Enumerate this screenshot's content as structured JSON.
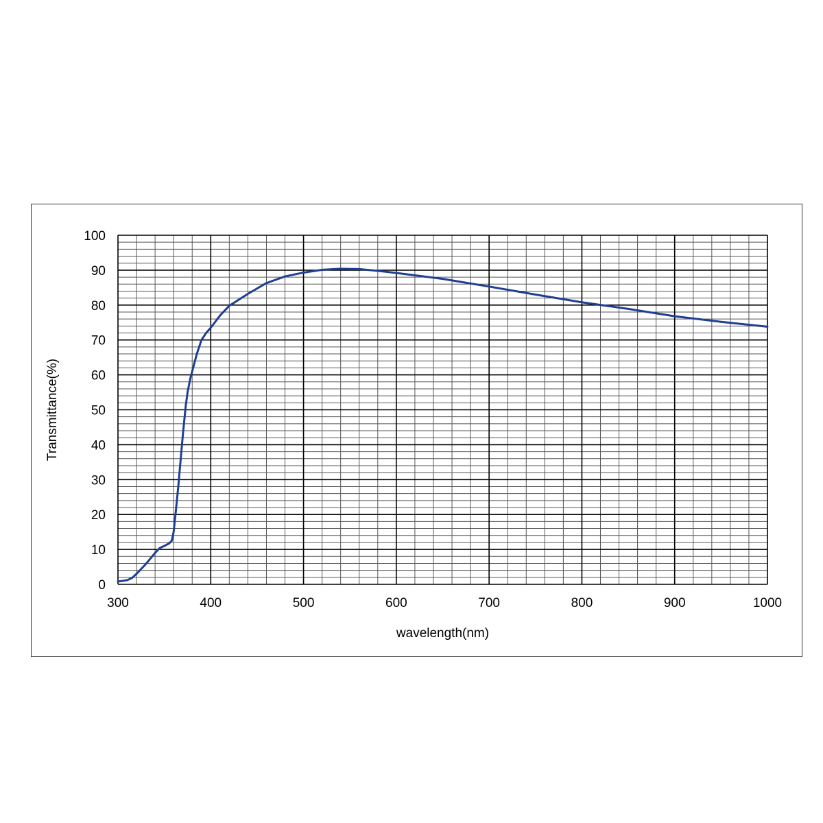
{
  "chart_data": {
    "type": "line",
    "title": "",
    "xlabel": "wavelength(nm)",
    "ylabel": "Transmittance(%)",
    "xlim": [
      300,
      1000
    ],
    "ylim": [
      0,
      100
    ],
    "x_ticks": [
      300,
      400,
      500,
      600,
      700,
      800,
      900,
      1000
    ],
    "y_ticks": [
      0,
      10,
      20,
      30,
      40,
      50,
      60,
      70,
      80,
      90,
      100
    ],
    "x_tick_labels": [
      "300",
      "400",
      "500",
      "600",
      "700",
      "800",
      "900",
      "1000"
    ],
    "y_tick_labels": [
      "0",
      "10",
      "20",
      "30",
      "40",
      "50",
      "60",
      "70",
      "80",
      "90",
      "100"
    ],
    "grid": true,
    "line_color": "#1f3f94",
    "series": [
      {
        "x": [
          300,
          310,
          315,
          320,
          330,
          340,
          345,
          350,
          355,
          358,
          360,
          362,
          365,
          368,
          370,
          373,
          375,
          378,
          380,
          385,
          390,
          395,
          400,
          410,
          420,
          440,
          460,
          480,
          500,
          520,
          540,
          560,
          580,
          600,
          650,
          700,
          750,
          800,
          850,
          900,
          950,
          1000
        ],
        "y": [
          0.8,
          1.2,
          1.8,
          3.0,
          5.8,
          9.0,
          10.4,
          11.0,
          11.7,
          12.5,
          15.0,
          20.0,
          28.0,
          37.0,
          43.0,
          51.0,
          55.0,
          59.0,
          61.0,
          66.0,
          70.0,
          72.0,
          73.5,
          77.0,
          79.8,
          83.2,
          86.3,
          88.2,
          89.3,
          90.1,
          90.4,
          90.3,
          89.8,
          89.2,
          87.5,
          85.3,
          83.0,
          80.8,
          78.9,
          76.8,
          75.2,
          73.8
        ]
      }
    ]
  }
}
